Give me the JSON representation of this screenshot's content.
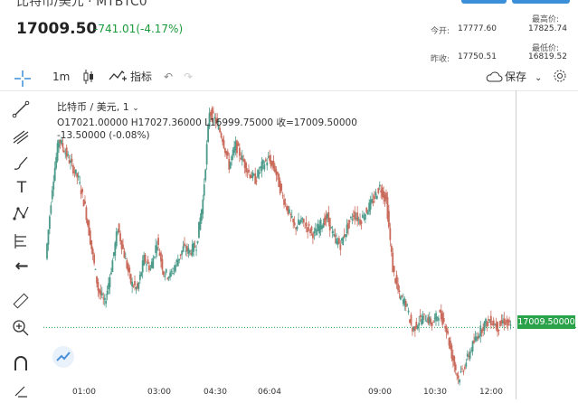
{
  "header": {
    "title": "比特币/美元 · MTBTC0",
    "price": "17009.50",
    "change": "-741.01(-4.17%)",
    "open_label": "今开:",
    "open_value": "17777.60",
    "prev_close_label": "昨收:",
    "prev_close_value": "17750.51",
    "high_label": "最高价:",
    "high_value": "17825.74",
    "low_label": "最低价:",
    "low_value": "16819.52"
  },
  "toolbar": {
    "interval": "1m",
    "indicators_label": "指标",
    "save_label": "保存"
  },
  "legend": {
    "symbol": "比特币 / 美元, 1",
    "ohlc": "O17021.00000   H17027.36000   L16999.75000   收=17009.50000",
    "change": "-13.50000  (-0.08%)"
  },
  "price_tag": "17009.50000",
  "time_axis": [
    "01:00",
    "03:00",
    "04:30",
    "06:04",
    "09:00",
    "10:30",
    "12:00"
  ],
  "colors": {
    "up": "#1a9a3a",
    "down": "#d9433b",
    "accent": "#3a8fd8",
    "candle_up": "#4c9a8a",
    "candle_down": "#c96a5b"
  },
  "chart_data": {
    "type": "line",
    "last_price": 17009.5,
    "x": [
      "00:30",
      "00:40",
      "00:50",
      "01:00",
      "01:10",
      "01:20",
      "01:30",
      "01:40",
      "01:50",
      "02:00",
      "02:10",
      "02:20",
      "02:30",
      "02:40",
      "02:50",
      "03:00",
      "03:10",
      "03:20",
      "03:30",
      "03:40",
      "03:50",
      "04:00",
      "04:10",
      "04:20",
      "04:30",
      "04:40",
      "04:50",
      "05:00",
      "05:10",
      "05:20",
      "05:30",
      "05:40",
      "05:50",
      "06:00",
      "06:10",
      "06:20",
      "06:30",
      "06:40",
      "06:50",
      "07:00",
      "07:10",
      "07:20",
      "07:30",
      "07:40",
      "07:50",
      "08:00",
      "08:10",
      "08:20",
      "08:30",
      "08:40",
      "08:50",
      "09:00",
      "09:10",
      "09:20",
      "09:30",
      "09:40",
      "09:50",
      "10:00",
      "10:10",
      "10:20",
      "10:30",
      "10:40",
      "10:50",
      "11:00",
      "11:10",
      "11:20",
      "11:30",
      "11:40",
      "11:50",
      "12:00",
      "12:10",
      "12:20"
    ],
    "values": [
      17210,
      17420,
      17560,
      17520,
      17480,
      17440,
      17360,
      17240,
      17120,
      17080,
      17180,
      17300,
      17220,
      17140,
      17120,
      17210,
      17180,
      17260,
      17170,
      17160,
      17200,
      17240,
      17230,
      17250,
      17380,
      17640,
      17610,
      17560,
      17480,
      17540,
      17500,
      17460,
      17440,
      17480,
      17500,
      17470,
      17400,
      17350,
      17300,
      17320,
      17300,
      17280,
      17310,
      17330,
      17270,
      17250,
      17300,
      17340,
      17320,
      17350,
      17380,
      17420,
      17380,
      17180,
      17100,
      17080,
      17000,
      17030,
      17040,
      17020,
      17050,
      17020,
      16930,
      16860,
      16900,
      16950,
      16990,
      17020,
      17030,
      17010,
      17030,
      17009.5
    ],
    "ylim": [
      16800,
      17700
    ]
  }
}
